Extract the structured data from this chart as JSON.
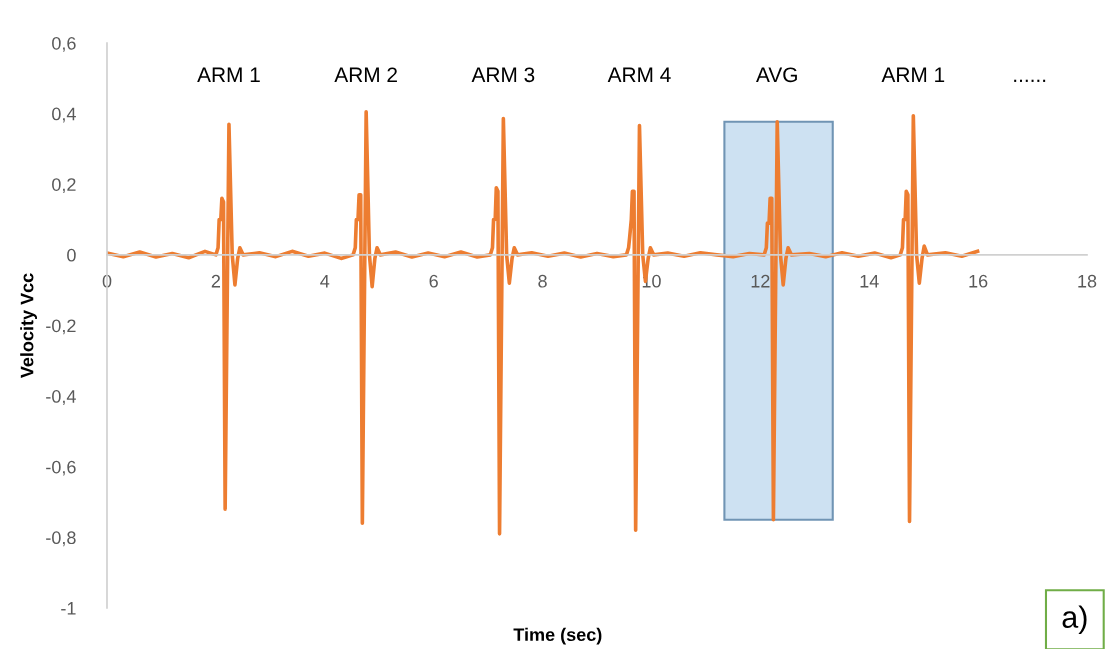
{
  "chart_data": {
    "type": "line",
    "xlabel": "Time (sec)",
    "ylabel": "Velocity Vcc",
    "xlim": [
      0,
      18
    ],
    "xticks": [
      0,
      2,
      4,
      6,
      8,
      10,
      12,
      14,
      16,
      18
    ],
    "ylim": [
      -1,
      0.6
    ],
    "yticks": [
      {
        "value": -1,
        "label": "-1"
      },
      {
        "value": -0.8,
        "label": "-0,8"
      },
      {
        "value": -0.6,
        "label": "-0,6"
      },
      {
        "value": -0.4,
        "label": "-0,4"
      },
      {
        "value": -0.2,
        "label": "-0,2"
      },
      {
        "value": 0,
        "label": "0"
      },
      {
        "value": 0.2,
        "label": "0,2"
      },
      {
        "value": 0.4,
        "label": "0,4"
      },
      {
        "value": 0.6,
        "label": "0,6"
      }
    ],
    "grid": false,
    "legend": false,
    "marker": "none",
    "line_style": "solid",
    "series": [
      {
        "color": "#ed7d31",
        "x": [
          0,
          0.3,
          0.6,
          0.9,
          1.2,
          1.5,
          1.8,
          2.0,
          2.04,
          2.06,
          2.09,
          2.11,
          2.14,
          2.17,
          2.24,
          2.3,
          2.35,
          2.4,
          2.44,
          2.5,
          2.8,
          3.1,
          3.4,
          3.7,
          4.0,
          4.3,
          4.52,
          4.56,
          4.58,
          4.61,
          4.63,
          4.66,
          4.69,
          4.76,
          4.82,
          4.87,
          4.92,
          4.96,
          5.02,
          5.3,
          5.6,
          5.9,
          6.2,
          6.5,
          6.8,
          7.04,
          7.08,
          7.1,
          7.13,
          7.15,
          7.18,
          7.21,
          7.28,
          7.34,
          7.39,
          7.44,
          7.48,
          7.54,
          7.8,
          8.1,
          8.4,
          8.7,
          9.0,
          9.3,
          9.54,
          9.58,
          9.6,
          9.63,
          9.65,
          9.68,
          9.71,
          9.78,
          9.84,
          9.89,
          9.94,
          9.98,
          10.04,
          10.3,
          10.6,
          10.9,
          11.2,
          11.5,
          11.8,
          12.07,
          12.11,
          12.13,
          12.16,
          12.18,
          12.21,
          12.24,
          12.31,
          12.37,
          12.42,
          12.47,
          12.51,
          12.57,
          12.9,
          13.2,
          13.5,
          13.8,
          14.1,
          14.4,
          14.57,
          14.61,
          14.63,
          14.66,
          14.68,
          14.71,
          14.74,
          14.81,
          14.87,
          14.92,
          14.97,
          15.01,
          15.07,
          15.4,
          15.7,
          15.99
        ],
        "values": [
          0.005,
          -0.005,
          0.008,
          -0.006,
          0.004,
          -0.008,
          0.01,
          0,
          0.02,
          0.1,
          0.1,
          0.16,
          0.15,
          -0.72,
          0.37,
          0,
          -0.085,
          -0.01,
          0.02,
          0,
          0.006,
          -0.005,
          0.01,
          -0.004,
          0.005,
          -0.01,
          0,
          0.02,
          0.1,
          0.1,
          0.17,
          0.17,
          -0.76,
          0.405,
          0,
          -0.09,
          -0.01,
          0.02,
          0,
          0.008,
          -0.006,
          0.005,
          -0.005,
          0.008,
          -0.006,
          0,
          0.02,
          0.1,
          0.1,
          0.19,
          0.18,
          -0.79,
          0.386,
          0,
          -0.08,
          -0.01,
          0.02,
          0,
          0.006,
          -0.004,
          0.005,
          -0.006,
          0.004,
          -0.005,
          0,
          0.02,
          0.05,
          0.1,
          0.18,
          0.18,
          -0.78,
          0.366,
          0,
          -0.075,
          -0.01,
          0.02,
          0,
          0.005,
          -0.004,
          0.006,
          0,
          -0.005,
          0.004,
          0,
          0.02,
          0.09,
          0.09,
          0.16,
          0.16,
          -0.75,
          0.377,
          0,
          -0.085,
          -0.01,
          0.02,
          0,
          0.004,
          -0.005,
          0.006,
          -0.004,
          0.005,
          -0.008,
          0,
          0.02,
          0.1,
          0.1,
          0.18,
          0.17,
          -0.755,
          0.394,
          0,
          -0.08,
          -0.01,
          0.025,
          0,
          0.006,
          -0.004,
          0.01
        ]
      }
    ],
    "bands": [
      {
        "axis": "x",
        "from": 11.34,
        "to": 13.33,
        "color": "#bdd7ee"
      }
    ],
    "annotations": [
      "ARM 1",
      "ARM 2",
      "ARM 3",
      "ARM 4",
      "AVG",
      "ARM 1",
      "......",
      "a)"
    ]
  }
}
